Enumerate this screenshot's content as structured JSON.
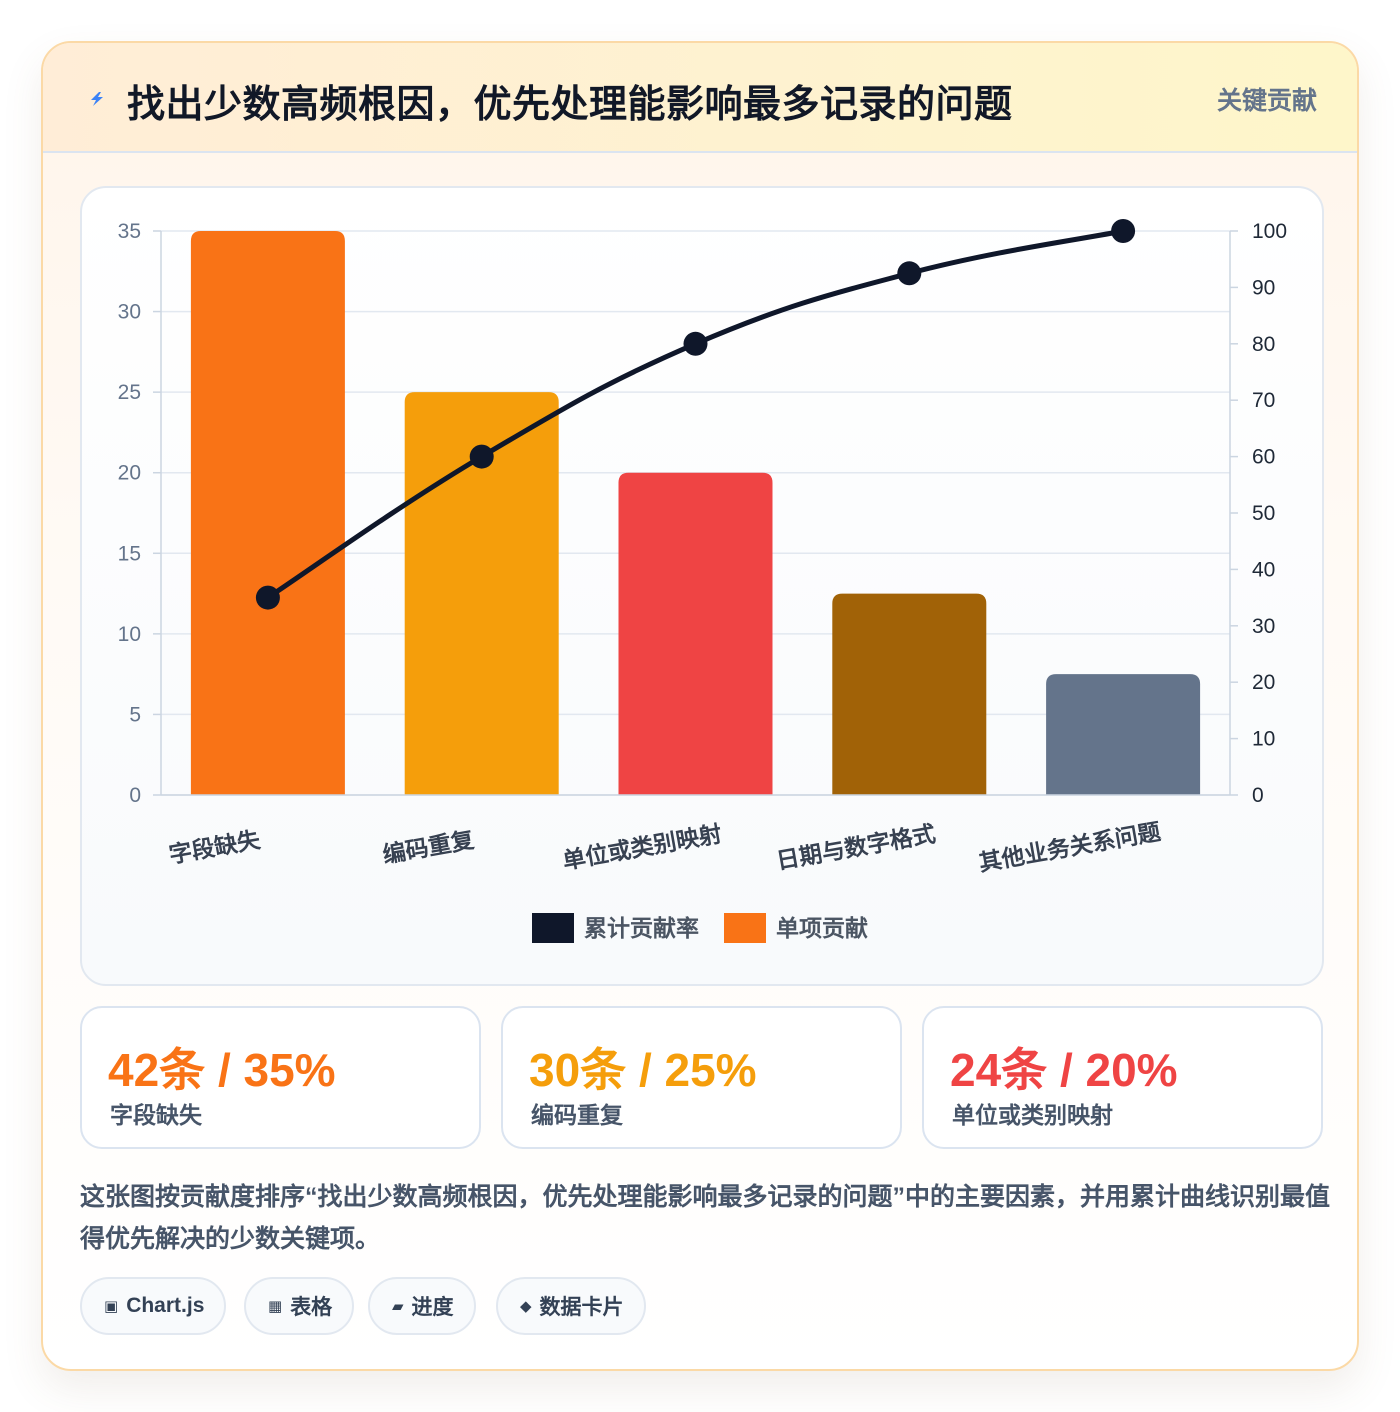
{
  "header": {
    "title": "找出少数高频根因，优先处理能影响最多记录的问题",
    "badge": "关键贡献",
    "icon": "lightning-icon"
  },
  "chart_data": {
    "type": "bar",
    "categories": [
      "字段缺失",
      "编码重复",
      "单位或类别映射",
      "日期与数字格式",
      "其他业务关系问题"
    ],
    "series": [
      {
        "name": "单项贡献",
        "type": "bar",
        "axis": "left",
        "values": [
          35,
          25,
          20,
          12.5,
          7.5
        ],
        "colors": [
          "#f97316",
          "#f59e0b",
          "#ef4444",
          "#a16207",
          "#64748b"
        ]
      },
      {
        "name": "累计贡献率",
        "type": "line",
        "axis": "right",
        "values": [
          35,
          60,
          80,
          92.5,
          100
        ],
        "color": "#0f172a"
      }
    ],
    "legend": [
      {
        "label": "累计贡献率",
        "color": "#0f172a"
      },
      {
        "label": "单项贡献",
        "color": "#f97316"
      }
    ],
    "yleft": {
      "min": 0,
      "max": 35,
      "ticks": [
        "0",
        "5",
        "10",
        "15",
        "20",
        "25",
        "30",
        "35"
      ]
    },
    "yright": {
      "min": 0,
      "max": 100,
      "ticks": [
        "0",
        "10",
        "20",
        "30",
        "40",
        "50",
        "60",
        "70",
        "80",
        "90",
        "100"
      ]
    },
    "grid": true,
    "legend_position": "bottom"
  },
  "stats": [
    {
      "value": "42条 / 35%",
      "label": "字段缺失",
      "color": "#f97316"
    },
    {
      "value": "30条 / 25%",
      "label": "编码重复",
      "color": "#f59e0b"
    },
    {
      "value": "24条 / 20%",
      "label": "单位或类别映射",
      "color": "#ef4444"
    }
  ],
  "description": "这张图按贡献度排序“找出少数高频根因，优先处理能影响最多记录的问题”中的主要因素，并用累计曲线识别最值得优先解决的少数关键项。",
  "pills": [
    {
      "icon": "▣",
      "label": "Chart.js"
    },
    {
      "icon": "▦",
      "label": "表格"
    },
    {
      "icon": "▰",
      "label": "进度"
    },
    {
      "icon": "◆",
      "label": "数据卡片"
    }
  ]
}
